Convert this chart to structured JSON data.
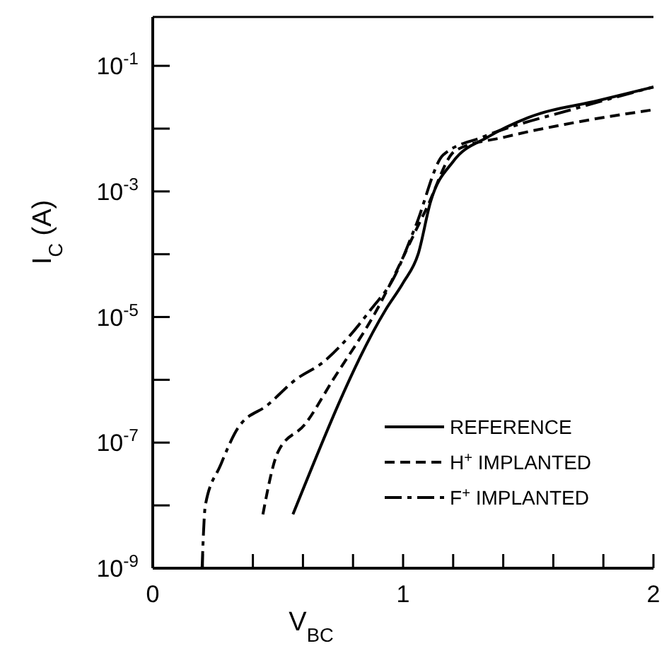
{
  "chart_data": {
    "type": "line",
    "xlabel": "V$_{BC}$",
    "ylabel": "I$_{C}$ (A)",
    "log": "y",
    "grid": false,
    "legend": "bottom right",
    "xlim": [
      0,
      2
    ],
    "xticks": [
      0,
      {
        "value": 0.2,
        "label": null
      },
      {
        "value": 0.4,
        "label": null
      },
      {
        "value": 0.6,
        "label": null
      },
      {
        "value": 0.8,
        "label": null
      },
      1,
      {
        "value": 1.2,
        "label": null
      },
      {
        "value": 1.4,
        "label": null
      },
      {
        "value": 1.6,
        "label": null
      },
      {
        "value": 1.8,
        "label": null
      },
      2
    ],
    "ylim": [
      1e-09,
      0.6
    ],
    "yticks": [
      {
        "value": 1e-09,
        "label": "10$^{-9}$"
      },
      {
        "value": 1e-08,
        "label": null
      },
      {
        "value": 1e-07,
        "label": "10$^{-7}$"
      },
      {
        "value": 1e-06,
        "label": null
      },
      {
        "value": 1e-05,
        "label": "10$^{-5}$"
      },
      {
        "value": 0.0001,
        "label": null
      },
      {
        "value": 0.001,
        "label": "10$^{-3}$"
      },
      {
        "value": 0.01,
        "label": null
      },
      {
        "value": 0.1,
        "label": "10$^{-1}$"
      }
    ],
    "series": [
      {
        "name": "REFERENCE",
        "color": "#000000",
        "line_style": "solid",
        "x": [
          0.56,
          0.93,
          1.0,
          1.06,
          1.11,
          1.2,
          1.34,
          1.5,
          1.78,
          2.0
        ],
        "values": [
          7.2e-09,
          1.3e-05,
          3.5e-05,
          0.0001,
          0.00069,
          0.003,
          0.0074,
          0.015,
          0.028,
          0.046
        ]
      },
      {
        "name": "H$^{+}$ IMPLANTED",
        "color": "#000000",
        "line_style": "dashed",
        "x": [
          0.44,
          0.5,
          0.61,
          0.72,
          0.885,
          1.09,
          1.21,
          1.41,
          1.69,
          2.0
        ],
        "values": [
          7.2e-09,
          7.1e-08,
          2e-07,
          1e-06,
          1.1e-05,
          0.0005,
          0.0045,
          0.0074,
          0.0126,
          0.02
        ]
      },
      {
        "name": "F$^{+}$ IMPLANTED",
        "color": "#000000",
        "line_style": "dashdot",
        "x": [
          0.197,
          0.21,
          0.27,
          0.34,
          0.46,
          0.57,
          0.68,
          0.79,
          0.87,
          0.96,
          1.05,
          1.16,
          1.32,
          1.69,
          2.0
        ],
        "values": [
          1e-09,
          1e-08,
          4.3e-08,
          1.7e-07,
          4e-07,
          1e-06,
          1.9e-06,
          5.2e-06,
          1.3e-05,
          4e-05,
          0.00028,
          0.0038,
          0.0074,
          0.021,
          0.046
        ]
      }
    ]
  }
}
